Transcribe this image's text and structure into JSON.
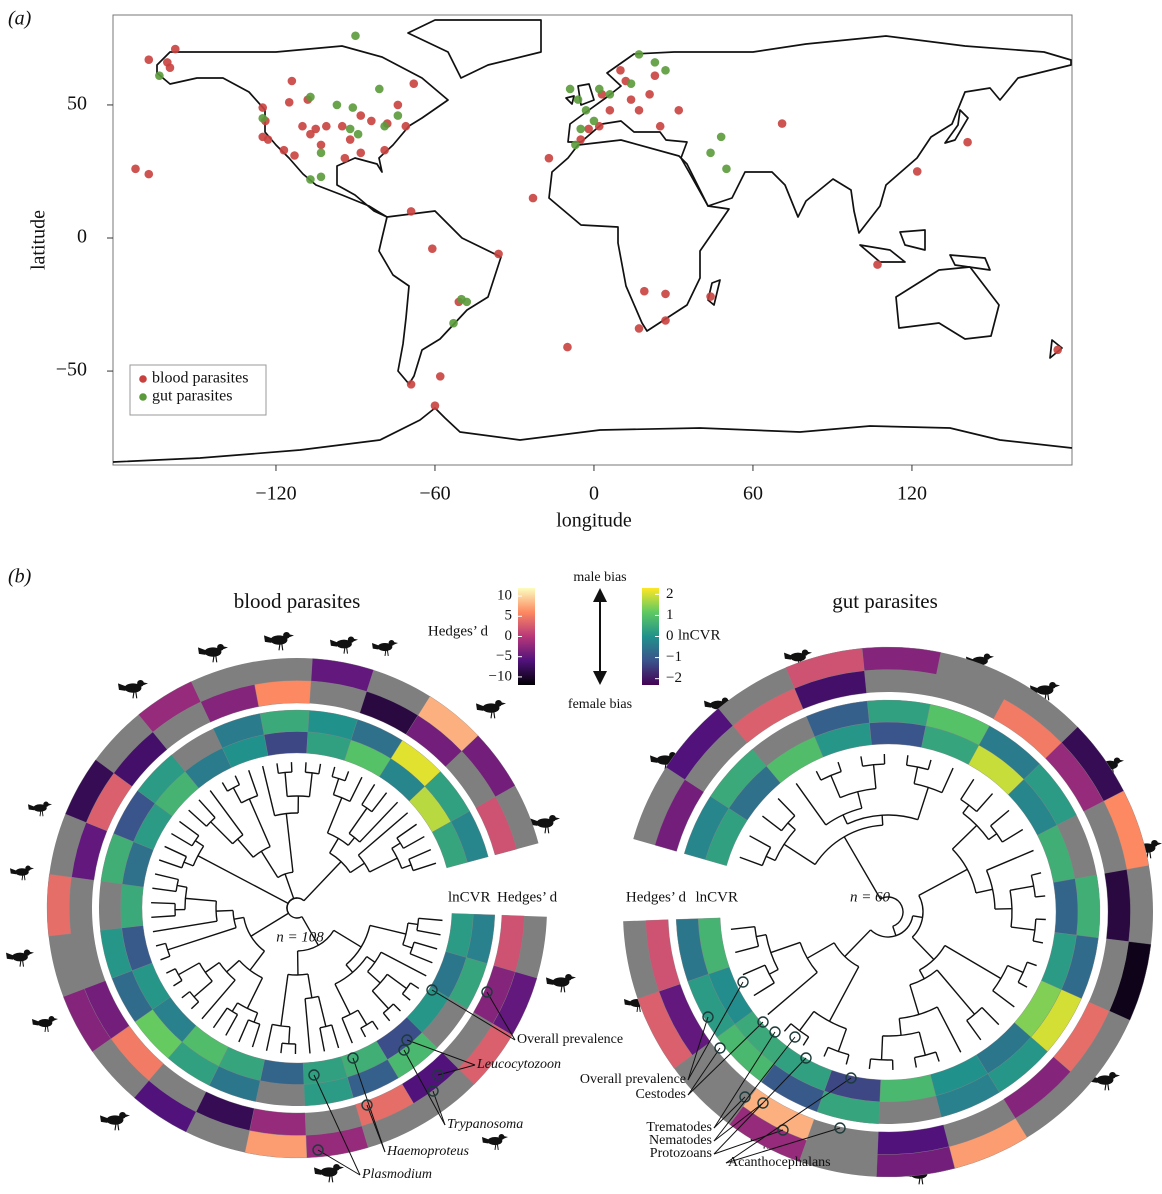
{
  "panel_labels": [
    "(a)",
    "(b)"
  ],
  "chart_data": [
    {
      "type": "scatter",
      "xlabel": "longitude",
      "ylabel": "latitude",
      "xlim": [
        -181.5,
        180.4
      ],
      "ylim": [
        -85.3,
        83.8
      ],
      "xticks": [
        {
          "value": -120,
          "label": "−120"
        },
        {
          "value": -60,
          "label": "−60"
        },
        0,
        60,
        120
      ],
      "yticks": [
        {
          "value": -50,
          "label": "−50"
        },
        0,
        50
      ],
      "legend": "lower left",
      "series": [
        {
          "name": "blood parasites",
          "color": "#c9413f",
          "x": [
            -158,
            -168,
            -161,
            -160,
            -173,
            -168,
            -125,
            -124,
            -123,
            -125,
            -114,
            -115,
            -108,
            -110,
            -105,
            -107,
            -103,
            -117,
            -113,
            -101,
            -95,
            -88,
            -84,
            -92,
            -94,
            -88,
            -79,
            -78,
            -71,
            -68,
            -74,
            -69,
            -61,
            -36,
            -51,
            -58,
            -69,
            -60,
            -10,
            -23,
            -17,
            -2,
            -5,
            2,
            6,
            14,
            21,
            17,
            10,
            12,
            25,
            32,
            19,
            27,
            17,
            27,
            44,
            71,
            141,
            122,
            107,
            175,
            3,
            23
          ],
          "values": [
            71,
            67,
            66,
            64,
            26,
            24,
            49,
            44,
            37,
            38,
            59,
            51,
            52,
            42,
            41,
            39,
            35,
            33,
            31,
            42,
            42,
            46,
            44,
            37,
            30,
            32,
            33,
            43,
            42,
            58,
            50,
            10,
            -4,
            -6,
            -24,
            -52,
            -55,
            -63,
            -41,
            15,
            30,
            41,
            37,
            42,
            48,
            52,
            54,
            48,
            63,
            59,
            42,
            48,
            -20,
            -21,
            -34,
            -31,
            -22,
            43,
            36,
            25,
            -10,
            -42,
            54,
            61
          ]
        },
        {
          "name": "gut parasites",
          "color": "#5a9a3a",
          "x": [
            -164,
            -125,
            -107,
            -97,
            -92,
            -91,
            -89,
            -103,
            -107,
            -103,
            -81,
            -79,
            -74,
            -90,
            -50,
            -48,
            -53,
            -6,
            -3,
            0,
            -5,
            -7,
            17,
            23,
            27,
            2,
            6,
            14,
            44,
            50,
            48,
            -9
          ],
          "values": [
            61,
            45,
            53,
            50,
            41,
            49,
            39,
            32,
            22,
            23,
            56,
            42,
            46,
            76,
            -23,
            -24,
            -32,
            52,
            48,
            44,
            41,
            35,
            69,
            66,
            63,
            56,
            54,
            58,
            32,
            26,
            38,
            56
          ]
        }
      ]
    },
    {
      "type": "circular_heatmap",
      "title": "blood parasites",
      "n_label": "n = 108",
      "ring_labels": [
        "lnCVR",
        "Hedges’ d"
      ],
      "lncvr": [
        [
          0.2,
          -0.5,
          0.1,
          -1.2,
          0.6,
          0.3,
          -0.8,
          0.4,
          0.9,
          -0.3,
          0.1,
          -1.0,
          0.5,
          -0.6,
          0.2,
          0.7,
          -0.4,
          0.0,
          -1.3,
          0.3,
          1.0,
          -0.2,
          1.8,
          0.4
        ],
        [
          -0.3,
          0.4,
          null,
          0.8,
          -0.9,
          0.2,
          null,
          -0.5,
          0.3,
          1.2,
          -0.7,
          0.1,
          null,
          0.6,
          -1.1,
          0.2,
          null,
          -0.4,
          0.5,
          0.0,
          -0.6,
          2.1,
          0.3,
          -0.2
        ]
      ],
      "hedges_d": [
        [
          2,
          -3,
          null,
          -6,
          4,
          null,
          -2,
          -8,
          null,
          5,
          -4,
          null,
          null,
          -5,
          3,
          -7,
          null,
          -3,
          6,
          null,
          -9,
          -4,
          null,
          2
        ],
        [
          null,
          -5,
          3,
          null,
          null,
          -2,
          7,
          null,
          -6,
          null,
          -3,
          null,
          4,
          null,
          -8,
          null,
          -2,
          null,
          null,
          -5,
          null,
          8,
          -4,
          null
        ]
      ],
      "annotations": [
        "Overall prevalence",
        "Leucocytozoon",
        "Trypanosoma",
        "Haemoproteus",
        "Plasmodium"
      ]
    },
    {
      "type": "circular_heatmap",
      "title": "gut parasites",
      "n_label": "n = 60",
      "ring_labels": [
        "lnCVR",
        "Hedges’ d"
      ],
      "lncvr": [
        [
          0.3,
          -0.6,
          0.9,
          0.1,
          -1.1,
          0.4,
          1.9,
          -0.2,
          0.6,
          -0.8,
          0.2,
          1.4,
          -0.5,
          0.0,
          0.8,
          -1.3,
          0.3,
          0.5,
          -0.1,
          0.7
        ],
        [
          -0.2,
          0.5,
          null,
          -0.9,
          0.3,
          1.0,
          -0.4,
          0.2,
          null,
          0.6,
          -0.7,
          2.0,
          0.1,
          -0.3,
          null,
          0.4,
          -1.0,
          0.8,
          0.2,
          -0.5
        ]
      ],
      "hedges_d": [
        [
          -4,
          null,
          3,
          -7,
          null,
          null,
          5,
          -2,
          null,
          -9,
          null,
          4,
          -3,
          null,
          -6,
          null,
          8,
          null,
          -5,
          2
        ],
        [
          null,
          -6,
          null,
          2,
          -3,
          null,
          null,
          -8,
          6,
          null,
          -11,
          null,
          null,
          7,
          -4,
          null,
          -2,
          null,
          3,
          null
        ]
      ],
      "annotations": [
        "Overall prevalence",
        "Cestodes",
        "Trematodes",
        "Nematodes",
        "Protozoans",
        "Acanthocephalans"
      ]
    },
    {
      "type": "colorbar",
      "top_label": "male bias",
      "bottom_label": "female bias",
      "hedges_d": {
        "label": "Hedges’ d",
        "lim": [
          -12,
          12
        ],
        "ticks": [
          10,
          5,
          0,
          {
            "value": -5,
            "label": "−5"
          },
          {
            "value": -10,
            "label": "−10"
          }
        ],
        "cmap": [
          "#000004",
          "#51127c",
          "#b73779",
          "#fc8961",
          "#fcfdbf"
        ]
      },
      "lncvr": {
        "label": "lnCVR",
        "lim": [
          -2.3,
          2.3
        ],
        "ticks": [
          2,
          1,
          0,
          {
            "value": -1,
            "label": "−1"
          },
          {
            "value": -2,
            "label": "−2"
          }
        ],
        "cmap": [
          "#440154",
          "#3b528b",
          "#21918c",
          "#5ec962",
          "#fde725"
        ]
      }
    }
  ]
}
